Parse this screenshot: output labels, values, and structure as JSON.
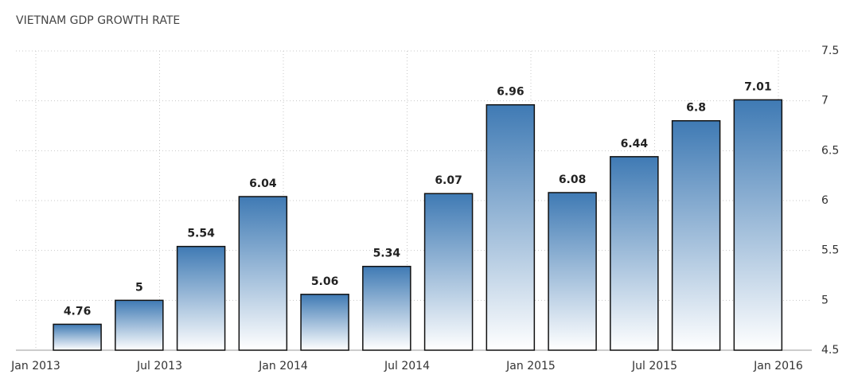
{
  "chart_data": {
    "type": "bar",
    "title": "VIETNAM GDP GROWTH RATE",
    "categories": [
      null,
      null,
      null,
      null,
      null,
      null,
      null,
      null,
      null,
      null,
      null,
      null
    ],
    "values": [
      4.76,
      5,
      5.54,
      6.04,
      5.06,
      5.34,
      6.07,
      6.96,
      6.08,
      6.44,
      6.8,
      7.01
    ],
    "x_labels": [
      "Jan 2013",
      "Jul 2013",
      "Jan 2014",
      "Jul 2014",
      "Jan 2015",
      "Jul 2015",
      "Jan 2016"
    ],
    "color": "#3f7ab4",
    "ylim": [
      4.5,
      7.5
    ],
    "yticks": [
      4.5,
      5,
      5.5,
      6,
      6.5,
      7,
      7.5
    ],
    "grid": true
  }
}
